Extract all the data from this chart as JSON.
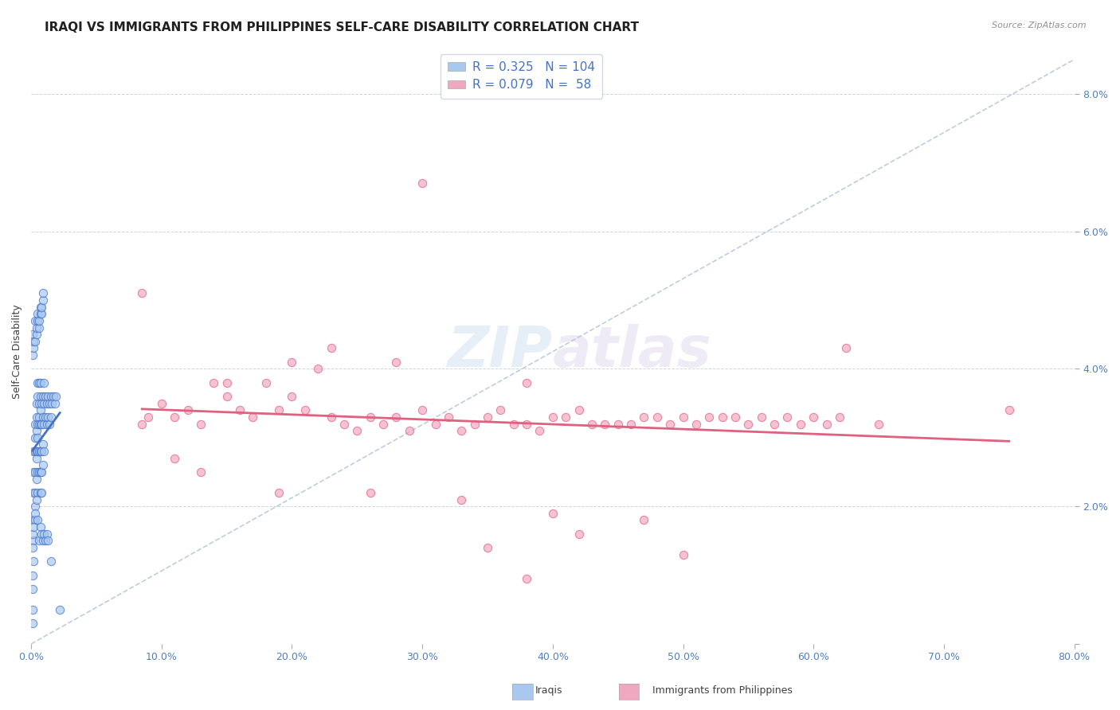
{
  "title": "IRAQI VS IMMIGRANTS FROM PHILIPPINES SELF-CARE DISABILITY CORRELATION CHART",
  "source": "Source: ZipAtlas.com",
  "xlabel": "",
  "ylabel": "Self-Care Disability",
  "xlim": [
    0.0,
    0.8
  ],
  "ylim": [
    0.0,
    0.085
  ],
  "xticks": [
    0.0,
    0.1,
    0.2,
    0.3,
    0.4,
    0.5,
    0.6,
    0.7,
    0.8
  ],
  "yticks": [
    0.0,
    0.02,
    0.04,
    0.06,
    0.08
  ],
  "xticklabels": [
    "0.0%",
    "10.0%",
    "20.0%",
    "30.0%",
    "40.0%",
    "50.0%",
    "60.0%",
    "70.0%",
    "80.0%"
  ],
  "yticklabels": [
    "",
    "2.0%",
    "4.0%",
    "6.0%",
    "8.0%"
  ],
  "legend_label1": "Iraqis",
  "legend_label2": "Immigrants from Philippines",
  "R1": 0.325,
  "N1": 104,
  "R2": 0.079,
  "N2": 58,
  "color_blue": "#a8c8f0",
  "color_pink": "#f0a8c0",
  "line_blue": "#4472c4",
  "line_pink": "#e06080",
  "line_dash": "#b0c0d8",
  "title_fontsize": 11,
  "axis_label_fontsize": 9,
  "tick_fontsize": 9,
  "watermark_zip": "ZIP",
  "watermark_atlas": "atlas",
  "iraqis_x": [
    0.001,
    0.001,
    0.001,
    0.001,
    0.002,
    0.002,
    0.002,
    0.002,
    0.002,
    0.002,
    0.003,
    0.003,
    0.003,
    0.003,
    0.003,
    0.003,
    0.003,
    0.004,
    0.004,
    0.004,
    0.004,
    0.004,
    0.004,
    0.005,
    0.005,
    0.005,
    0.005,
    0.005,
    0.005,
    0.005,
    0.006,
    0.006,
    0.006,
    0.006,
    0.006,
    0.006,
    0.007,
    0.007,
    0.007,
    0.007,
    0.007,
    0.007,
    0.007,
    0.008,
    0.008,
    0.008,
    0.008,
    0.008,
    0.009,
    0.009,
    0.009,
    0.009,
    0.01,
    0.01,
    0.01,
    0.01,
    0.011,
    0.011,
    0.012,
    0.012,
    0.013,
    0.013,
    0.014,
    0.014,
    0.015,
    0.015,
    0.016,
    0.017,
    0.018,
    0.019,
    0.001,
    0.001,
    0.002,
    0.002,
    0.003,
    0.003,
    0.004,
    0.004,
    0.005,
    0.005,
    0.006,
    0.006,
    0.007,
    0.007,
    0.008,
    0.008,
    0.009,
    0.009,
    0.001,
    0.001,
    0.002,
    0.003,
    0.004,
    0.005,
    0.006,
    0.007,
    0.008,
    0.009,
    0.01,
    0.011,
    0.012,
    0.013,
    0.015,
    0.022
  ],
  "iraqis_y": [
    0.008,
    0.01,
    0.005,
    0.003,
    0.015,
    0.018,
    0.012,
    0.022,
    0.025,
    0.028,
    0.02,
    0.025,
    0.03,
    0.032,
    0.028,
    0.022,
    0.018,
    0.027,
    0.031,
    0.033,
    0.035,
    0.028,
    0.024,
    0.032,
    0.036,
    0.038,
    0.03,
    0.025,
    0.028,
    0.022,
    0.033,
    0.035,
    0.038,
    0.032,
    0.028,
    0.025,
    0.034,
    0.036,
    0.038,
    0.032,
    0.028,
    0.025,
    0.022,
    0.035,
    0.032,
    0.028,
    0.025,
    0.022,
    0.036,
    0.033,
    0.029,
    0.026,
    0.038,
    0.035,
    0.032,
    0.028,
    0.036,
    0.033,
    0.035,
    0.032,
    0.036,
    0.033,
    0.035,
    0.032,
    0.036,
    0.033,
    0.035,
    0.036,
    0.035,
    0.036,
    0.042,
    0.045,
    0.043,
    0.044,
    0.044,
    0.047,
    0.045,
    0.046,
    0.047,
    0.048,
    0.046,
    0.047,
    0.048,
    0.049,
    0.048,
    0.049,
    0.05,
    0.051,
    0.016,
    0.014,
    0.017,
    0.019,
    0.021,
    0.018,
    0.015,
    0.017,
    0.016,
    0.015,
    0.016,
    0.015,
    0.016,
    0.015,
    0.012,
    0.005
  ],
  "philippines_x": [
    0.085,
    0.09,
    0.1,
    0.11,
    0.12,
    0.13,
    0.14,
    0.15,
    0.16,
    0.17,
    0.18,
    0.19,
    0.2,
    0.21,
    0.22,
    0.23,
    0.24,
    0.25,
    0.26,
    0.27,
    0.28,
    0.29,
    0.3,
    0.31,
    0.32,
    0.33,
    0.34,
    0.35,
    0.36,
    0.37,
    0.38,
    0.39,
    0.4,
    0.41,
    0.42,
    0.43,
    0.44,
    0.45,
    0.46,
    0.47,
    0.48,
    0.49,
    0.5,
    0.51,
    0.52,
    0.53,
    0.54,
    0.55,
    0.56,
    0.57,
    0.58,
    0.59,
    0.6,
    0.61,
    0.62,
    0.625,
    0.65,
    0.75
  ],
  "philippines_y": [
    0.032,
    0.033,
    0.035,
    0.033,
    0.034,
    0.032,
    0.038,
    0.036,
    0.034,
    0.033,
    0.038,
    0.034,
    0.036,
    0.034,
    0.04,
    0.033,
    0.032,
    0.031,
    0.033,
    0.032,
    0.033,
    0.031,
    0.034,
    0.032,
    0.033,
    0.031,
    0.032,
    0.033,
    0.034,
    0.032,
    0.032,
    0.031,
    0.033,
    0.033,
    0.034,
    0.032,
    0.032,
    0.032,
    0.032,
    0.033,
    0.033,
    0.032,
    0.033,
    0.032,
    0.033,
    0.033,
    0.033,
    0.032,
    0.033,
    0.032,
    0.033,
    0.032,
    0.033,
    0.032,
    0.033,
    0.043,
    0.032,
    0.034
  ],
  "philippines_y_special": [
    0.067,
    0.051,
    0.043,
    0.041,
    0.041,
    0.038,
    0.038,
    0.027,
    0.025,
    0.022,
    0.022,
    0.021,
    0.019,
    0.018,
    0.016,
    0.014,
    0.013,
    0.0095
  ],
  "philippines_x_special": [
    0.3,
    0.085,
    0.23,
    0.2,
    0.28,
    0.15,
    0.38,
    0.11,
    0.13,
    0.19,
    0.26,
    0.33,
    0.4,
    0.47,
    0.42,
    0.35,
    0.5,
    0.38
  ]
}
